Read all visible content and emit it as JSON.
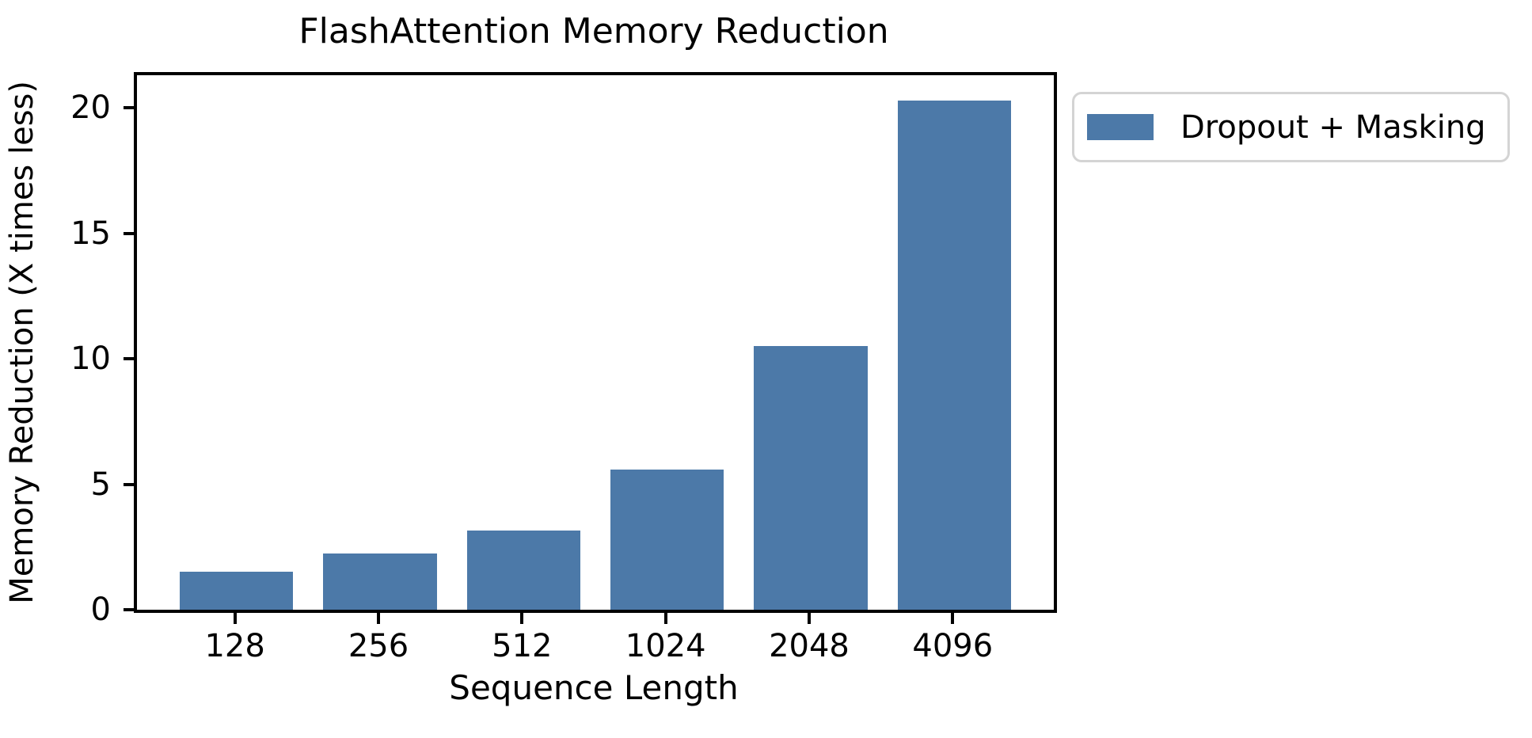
{
  "chart_data": {
    "type": "bar",
    "title": "FlashAttention Memory Reduction",
    "xlabel": "Sequence Length",
    "ylabel": "Memory Reduction (X times less)",
    "categories": [
      "128",
      "256",
      "512",
      "1024",
      "2048",
      "4096"
    ],
    "series": [
      {
        "name": "Dropout + Masking",
        "color": "#4c79a8",
        "values": [
          1.5,
          2.25,
          3.15,
          5.6,
          10.5,
          20.3
        ]
      }
    ],
    "ylim": [
      0,
      21.3
    ],
    "yticks": [
      0,
      5,
      10,
      15,
      20
    ],
    "grid": false,
    "legend": {
      "label": "Dropout + Masking",
      "position": "outside-upper-right"
    }
  },
  "colors": {
    "bar": "#4c79a8",
    "axes": "#000000",
    "legend_border": "#d4d4d4",
    "background": "#ffffff"
  }
}
